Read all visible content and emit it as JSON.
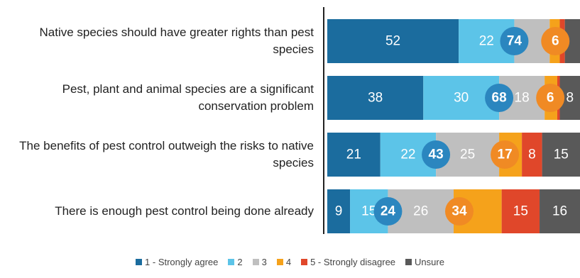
{
  "chart_data": {
    "type": "bar",
    "categories": [
      "Native species should have greater rights than pest species",
      "Pest, plant and animal species are a significant conservation problem",
      "The benefits of pest control outweigh the risks to native species",
      "There is enough pest control being done already"
    ],
    "series": [
      {
        "name": "1 - Strongly agree",
        "color": "#1b6c9e",
        "values": [
          52,
          38,
          21,
          9
        ]
      },
      {
        "name": "2",
        "color": "#5cc4e8",
        "values": [
          22,
          30,
          22,
          15
        ]
      },
      {
        "name": "3",
        "color": "#bfbfbf",
        "values": [
          14,
          18,
          25,
          26
        ]
      },
      {
        "name": "4",
        "color": "#f5a21b",
        "values": [
          4,
          5,
          9,
          19
        ]
      },
      {
        "name": "5 - Strongly disagree",
        "color": "#e0472a",
        "values": [
          2,
          1,
          8,
          15
        ]
      },
      {
        "name": "Unsure",
        "color": "#595959",
        "values": [
          6,
          8,
          15,
          16
        ]
      }
    ],
    "net_agree": [
      74,
      68,
      43,
      24
    ],
    "net_disagree": [
      6,
      6,
      17,
      34
    ],
    "xlim": [
      0,
      100
    ]
  }
}
